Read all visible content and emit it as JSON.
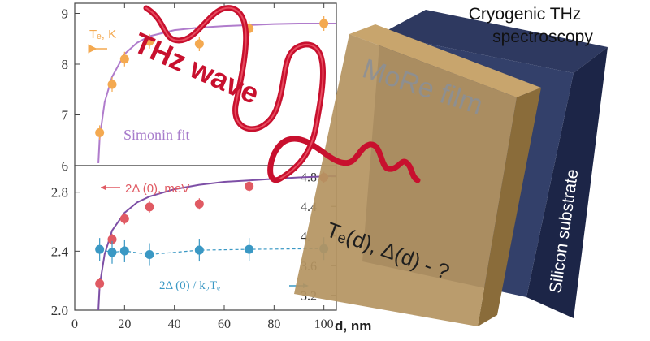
{
  "header": {
    "line1": "Cryogenic THz",
    "line2": "spectroscopy"
  },
  "labels": {
    "wave": "THz wave",
    "film": "MoRe film",
    "substrate": "Silicon substrate",
    "question": "Tₑ(d), Δ(d) - ?",
    "fit_name": "Simonin fit"
  },
  "colors": {
    "orange": "#f4a950",
    "red": "#e05a63",
    "blue": "#3a98c4",
    "purple": "#b07ccc",
    "wave": "#c8102e",
    "film": "#b08d57",
    "substrate": "#1f2a4e"
  },
  "chart_data": [
    {
      "type": "scatter",
      "panel": "top",
      "series": [
        {
          "name": "Tₑ, K",
          "x": [
            10,
            15,
            20,
            30,
            50,
            70,
            100
          ],
          "y": [
            6.65,
            7.6,
            8.1,
            8.45,
            8.4,
            8.7,
            8.8
          ]
        }
      ],
      "fit": {
        "name": "Simonin fit",
        "x": [
          9.5,
          10,
          12,
          15,
          20,
          25,
          30,
          40,
          50,
          60,
          70,
          80,
          90,
          105
        ],
        "y": [
          6.05,
          6.55,
          7.25,
          7.75,
          8.2,
          8.42,
          8.55,
          8.67,
          8.72,
          8.75,
          8.77,
          8.79,
          8.8,
          8.8
        ]
      },
      "yticks": [
        "6",
        "7",
        "8",
        "9"
      ],
      "ylim": [
        6,
        9.2
      ]
    },
    {
      "type": "scatter",
      "panel": "bottom",
      "series": [
        {
          "name": "2Δ (0), meV",
          "x": [
            10,
            15,
            20,
            30,
            50,
            70,
            100
          ],
          "y": [
            2.18,
            2.48,
            2.62,
            2.7,
            2.72,
            2.84,
            2.9
          ]
        },
        {
          "name": "2Δ (0) / k₂Tₑ",
          "x": [
            10,
            15,
            20,
            30,
            50,
            70,
            100
          ],
          "y": [
            3.82,
            3.78,
            3.8,
            3.75,
            3.81,
            3.82,
            3.83
          ]
        }
      ],
      "fit": {
        "x": [
          9.5,
          10,
          12,
          15,
          20,
          25,
          30,
          40,
          50,
          60,
          70,
          80,
          90,
          105
        ],
        "y": [
          2.0,
          2.17,
          2.38,
          2.54,
          2.66,
          2.73,
          2.77,
          2.82,
          2.85,
          2.87,
          2.88,
          2.89,
          2.9,
          2.91
        ]
      },
      "yticks_left": [
        "2.0",
        "2.4",
        "2.8"
      ],
      "ylim_left": [
        2.0,
        2.98
      ],
      "yticks_right": [
        "3.2",
        "3.6",
        "4.",
        "4.4",
        "4.8"
      ],
      "ylim_right": [
        3.0,
        4.95
      ],
      "xticks": [
        "0",
        "20",
        "40",
        "60",
        "80",
        "100"
      ],
      "xlabel": "d, nm",
      "xlim": [
        0,
        105
      ]
    }
  ]
}
